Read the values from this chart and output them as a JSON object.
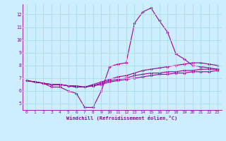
{
  "x": [
    0,
    1,
    2,
    3,
    4,
    5,
    6,
    7,
    8,
    9,
    10,
    11,
    12,
    13,
    14,
    15,
    16,
    17,
    18,
    19,
    20,
    21,
    22,
    23
  ],
  "line1": [
    6.8,
    6.7,
    6.6,
    6.3,
    6.3,
    6.0,
    5.8,
    4.7,
    4.7,
    6.0,
    7.9,
    8.1,
    8.2,
    11.3,
    12.2,
    12.5,
    11.5,
    10.6,
    8.9,
    8.5,
    8.0,
    7.9,
    7.8,
    7.7
  ],
  "line2": [
    6.8,
    6.7,
    6.6,
    6.5,
    6.5,
    6.4,
    6.4,
    6.3,
    6.5,
    6.7,
    6.9,
    7.1,
    7.2,
    7.4,
    7.6,
    7.7,
    7.8,
    7.9,
    8.0,
    8.1,
    8.2,
    8.2,
    8.1,
    8.0
  ],
  "line3": [
    6.8,
    6.7,
    6.6,
    6.5,
    6.5,
    6.4,
    6.3,
    6.3,
    6.4,
    6.6,
    6.8,
    6.9,
    7.0,
    7.2,
    7.3,
    7.4,
    7.4,
    7.5,
    7.5,
    7.6,
    7.6,
    7.7,
    7.7,
    7.7
  ],
  "line4": [
    6.8,
    6.7,
    6.6,
    6.5,
    6.5,
    6.4,
    6.3,
    6.3,
    6.4,
    6.5,
    6.7,
    6.8,
    6.9,
    7.0,
    7.1,
    7.2,
    7.3,
    7.3,
    7.4,
    7.4,
    7.5,
    7.5,
    7.5,
    7.6
  ],
  "color": "#990099",
  "bg_color": "#cceeff",
  "grid_color": "#aadddd",
  "ylim": [
    4.5,
    12.8
  ],
  "xlim": [
    -0.5,
    23.5
  ],
  "yticks": [
    5,
    6,
    7,
    8,
    9,
    10,
    11,
    12
  ],
  "xticks": [
    0,
    1,
    2,
    3,
    4,
    5,
    6,
    7,
    8,
    9,
    10,
    11,
    12,
    13,
    14,
    15,
    16,
    17,
    18,
    19,
    20,
    21,
    22,
    23
  ],
  "xlabel": "Windchill (Refroidissement éolien,°C)",
  "marker": "D",
  "markersize": 1.8,
  "linewidth": 0.8,
  "tick_fontsize": 4.5,
  "xlabel_fontsize": 5.0,
  "text_color": "#990099"
}
